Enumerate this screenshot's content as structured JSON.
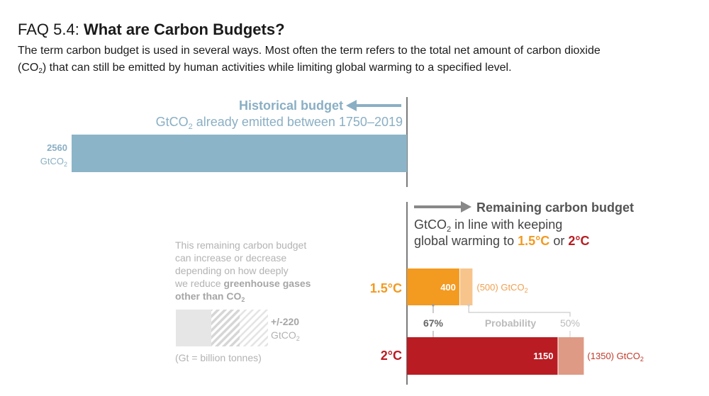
{
  "header": {
    "faq_number": "FAQ 5.4:",
    "title": "What are Carbon Budgets?",
    "intro_line1": "The term carbon budget is used in several ways. Most often the term refers to the total net amount of carbon dioxide",
    "intro_line2_pre": "(CO",
    "intro_line2_sub": "2",
    "intro_line2_post": ") that can still be emitted by human activities while limiting global warming to a specified level."
  },
  "colors": {
    "historical": "#8cb4c8",
    "historical_text": "#8aafc4",
    "orange": "#f39a20",
    "orange_light": "#f7c48c",
    "red": "#b91c22",
    "red_light": "#de9a85",
    "grey_text": "#b3b3b3",
    "dark_text": "#444444",
    "axis": "#333333"
  },
  "chart_data": {
    "type": "bar",
    "unit": "GtCO2",
    "historical": {
      "title": "Historical budget",
      "subtitle_pre": "GtCO",
      "subtitle_sub": "2",
      "subtitle_post": " already emitted between 1750–2019",
      "value": 2560,
      "value_label": "2560",
      "unit_pre": "GtCO",
      "unit_sub": "2"
    },
    "remaining": {
      "title": "Remaining carbon budget",
      "line1_pre": "GtCO",
      "line1_sub": "2",
      "line1_post": " in line with keeping",
      "line2_pre": "global warming to ",
      "line2_t15": "1.5°C",
      "line2_or": " or ",
      "line2_t2": "2°C",
      "probability_label": "Probability",
      "series": [
        {
          "name": "1.5°C",
          "p67": 400,
          "p67_label": "400",
          "p67_prob": "67%",
          "p50": 500,
          "p50_label": "(500) GtCO",
          "p50_sub": "2",
          "p50_prob": "50%"
        },
        {
          "name": "2°C",
          "p67": 1150,
          "p67_label": "1150",
          "p50": 1350,
          "p50_label": "(1350) GtCO",
          "p50_sub": "2"
        }
      ]
    },
    "uncertainty": {
      "note1": "This remaining carbon budget",
      "note2": "can increase or decrease",
      "note3": "depending on how deeply",
      "note4_pre": "we reduce ",
      "note4_bold": "greenhouse gases",
      "note5_bold_pre": "other than CO",
      "note5_sub": "2",
      "value_label": "+/-220",
      "unit_pre": "GtCO",
      "unit_sub": "2",
      "footnote": "(Gt = billion tonnes)"
    }
  }
}
